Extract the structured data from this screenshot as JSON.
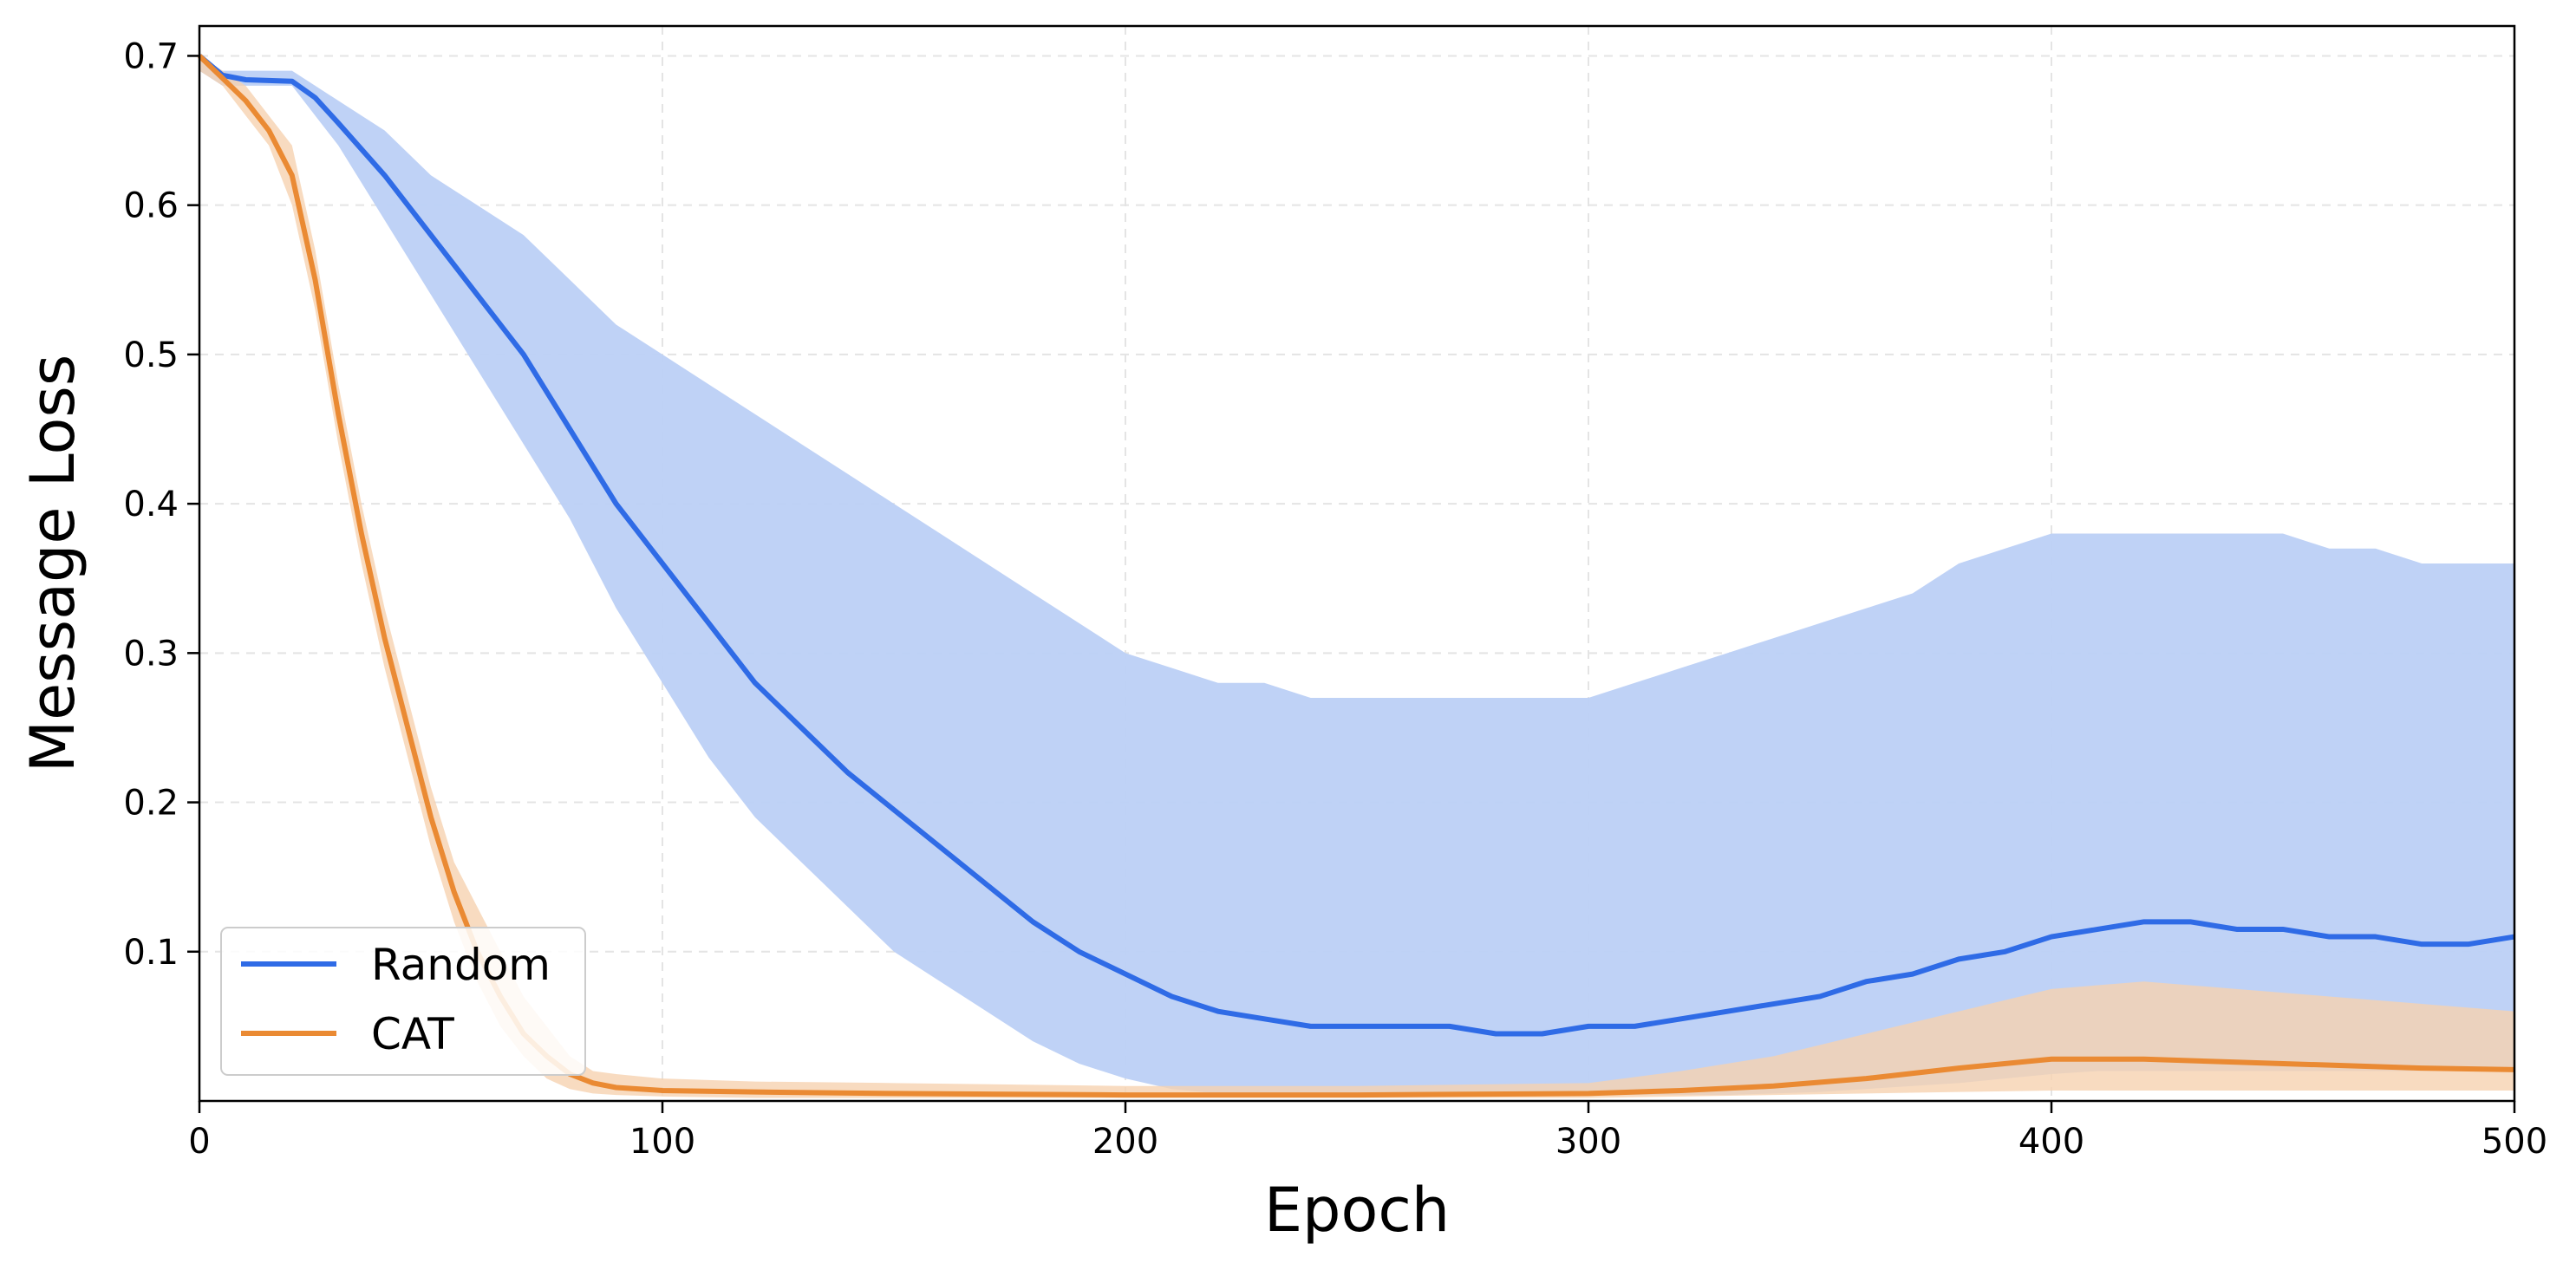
{
  "chart_data": {
    "type": "line",
    "xlabel": "Epoch",
    "ylabel": "Message Loss",
    "xlim": [
      0,
      500
    ],
    "ylim": [
      0,
      0.72
    ],
    "xticks": [
      0,
      100,
      200,
      300,
      400,
      500
    ],
    "xtick_labels": [
      "0",
      "100",
      "200",
      "300",
      "400",
      "500"
    ],
    "yticks": [
      0.1,
      0.2,
      0.3,
      0.4,
      0.5,
      0.6,
      0.7
    ],
    "ytick_labels": [
      "0.1",
      "0.2",
      "0.3",
      "0.4",
      "0.5",
      "0.6",
      "0.7"
    ],
    "grid": true,
    "legend_position": "bottom-left",
    "series": [
      {
        "name": "Random",
        "color": "#2f6be6",
        "band_color": "#bcd0f6",
        "x": [
          0,
          5,
          10,
          20,
          25,
          30,
          40,
          50,
          60,
          70,
          80,
          90,
          100,
          110,
          120,
          130,
          140,
          150,
          160,
          170,
          180,
          190,
          200,
          210,
          220,
          230,
          240,
          250,
          260,
          270,
          280,
          290,
          300,
          310,
          320,
          330,
          340,
          350,
          360,
          370,
          380,
          390,
          400,
          410,
          420,
          430,
          440,
          450,
          460,
          470,
          480,
          490,
          500
        ],
        "mean": [
          0.7,
          0.687,
          0.684,
          0.683,
          0.672,
          0.655,
          0.62,
          0.58,
          0.54,
          0.5,
          0.45,
          0.4,
          0.36,
          0.32,
          0.28,
          0.25,
          0.22,
          0.195,
          0.17,
          0.145,
          0.12,
          0.1,
          0.085,
          0.07,
          0.06,
          0.055,
          0.05,
          0.05,
          0.05,
          0.05,
          0.045,
          0.045,
          0.05,
          0.05,
          0.055,
          0.06,
          0.065,
          0.07,
          0.08,
          0.085,
          0.095,
          0.1,
          0.11,
          0.115,
          0.12,
          0.12,
          0.115,
          0.115,
          0.11,
          0.11,
          0.105,
          0.105,
          0.11
        ],
        "upper": [
          0.7,
          0.69,
          0.69,
          0.69,
          0.68,
          0.67,
          0.65,
          0.62,
          0.6,
          0.58,
          0.55,
          0.52,
          0.5,
          0.48,
          0.46,
          0.44,
          0.42,
          0.4,
          0.38,
          0.36,
          0.34,
          0.32,
          0.3,
          0.29,
          0.28,
          0.28,
          0.27,
          0.27,
          0.27,
          0.27,
          0.27,
          0.27,
          0.27,
          0.28,
          0.29,
          0.3,
          0.31,
          0.32,
          0.33,
          0.34,
          0.36,
          0.37,
          0.38,
          0.38,
          0.38,
          0.38,
          0.38,
          0.38,
          0.37,
          0.37,
          0.36,
          0.36,
          0.36
        ],
        "lower": [
          0.69,
          0.68,
          0.68,
          0.68,
          0.66,
          0.64,
          0.59,
          0.54,
          0.49,
          0.44,
          0.39,
          0.33,
          0.28,
          0.23,
          0.19,
          0.16,
          0.13,
          0.1,
          0.08,
          0.06,
          0.04,
          0.025,
          0.015,
          0.008,
          0.005,
          0.004,
          0.004,
          0.004,
          0.004,
          0.004,
          0.004,
          0.004,
          0.004,
          0.004,
          0.004,
          0.004,
          0.005,
          0.006,
          0.008,
          0.01,
          0.012,
          0.015,
          0.018,
          0.02,
          0.02,
          0.02,
          0.02,
          0.02,
          0.02,
          0.02,
          0.02,
          0.02,
          0.02
        ]
      },
      {
        "name": "CAT",
        "color": "#ea8a33",
        "band_color": "#f6d2b0",
        "x": [
          0,
          5,
          10,
          15,
          20,
          25,
          30,
          35,
          40,
          45,
          50,
          55,
          60,
          65,
          70,
          75,
          80,
          85,
          90,
          100,
          120,
          150,
          200,
          250,
          300,
          320,
          340,
          360,
          380,
          400,
          420,
          440,
          460,
          480,
          500
        ],
        "mean": [
          0.7,
          0.685,
          0.67,
          0.65,
          0.62,
          0.55,
          0.46,
          0.38,
          0.31,
          0.25,
          0.19,
          0.14,
          0.1,
          0.07,
          0.045,
          0.03,
          0.018,
          0.012,
          0.009,
          0.007,
          0.006,
          0.005,
          0.004,
          0.004,
          0.005,
          0.007,
          0.01,
          0.015,
          0.022,
          0.028,
          0.028,
          0.026,
          0.024,
          0.022,
          0.021
        ],
        "upper": [
          0.7,
          0.69,
          0.68,
          0.66,
          0.64,
          0.57,
          0.48,
          0.4,
          0.33,
          0.27,
          0.21,
          0.16,
          0.13,
          0.1,
          0.07,
          0.05,
          0.03,
          0.02,
          0.018,
          0.015,
          0.013,
          0.012,
          0.01,
          0.01,
          0.012,
          0.02,
          0.03,
          0.045,
          0.06,
          0.075,
          0.08,
          0.075,
          0.07,
          0.065,
          0.06
        ],
        "lower": [
          0.69,
          0.68,
          0.66,
          0.64,
          0.6,
          0.53,
          0.44,
          0.36,
          0.29,
          0.23,
          0.17,
          0.12,
          0.08,
          0.05,
          0.03,
          0.015,
          0.008,
          0.005,
          0.004,
          0.003,
          0.002,
          0.002,
          0.002,
          0.002,
          0.002,
          0.003,
          0.004,
          0.005,
          0.006,
          0.007,
          0.007,
          0.007,
          0.007,
          0.007,
          0.007
        ]
      }
    ]
  }
}
